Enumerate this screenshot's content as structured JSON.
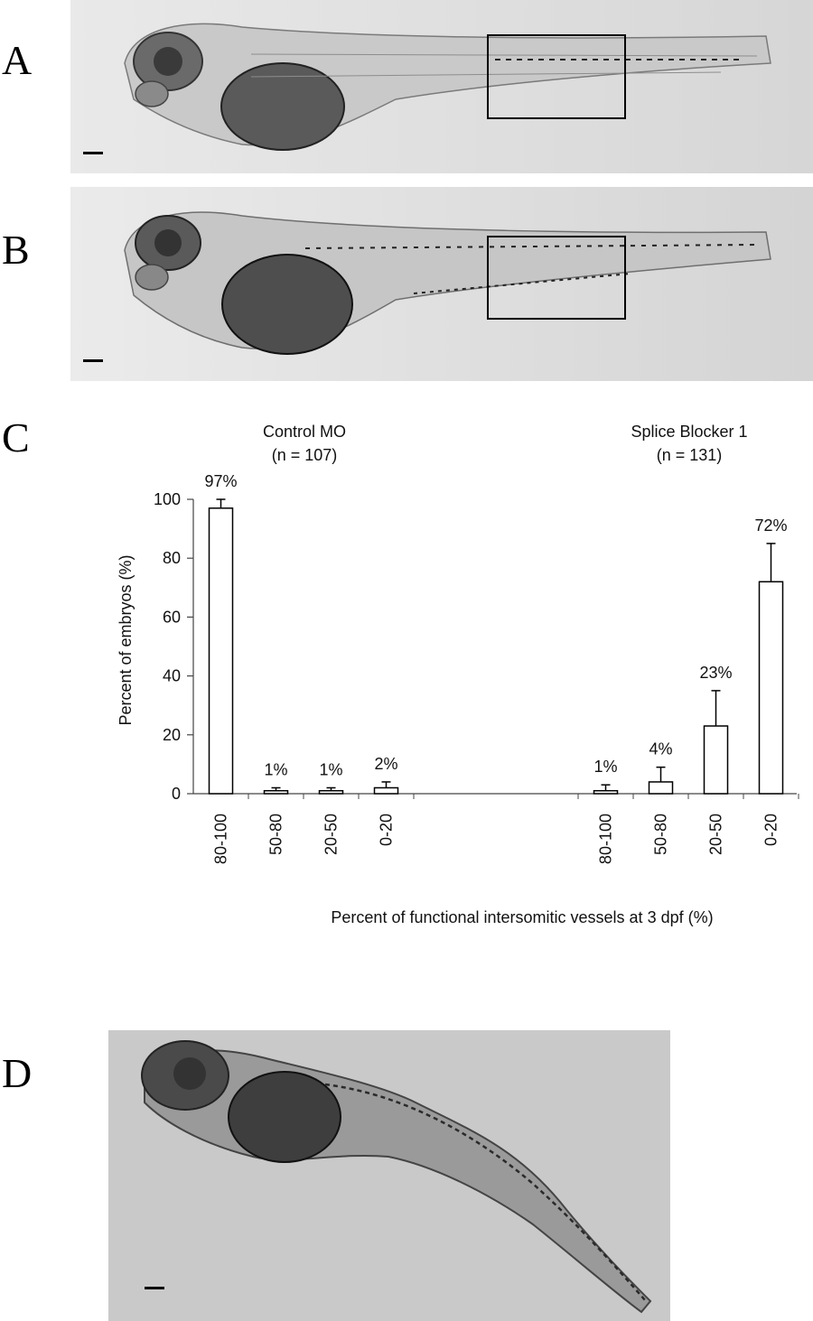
{
  "panels": {
    "a": {
      "letter": "A"
    },
    "b": {
      "letter": "B"
    },
    "c": {
      "letter": "C"
    },
    "d": {
      "letter": "D"
    }
  },
  "chart_data": {
    "type": "bar",
    "ylabel": "Percent of embryos (%)",
    "xlabel": "Percent of functional intersomitic vessels at 3 dpf (%)",
    "ylim": [
      0,
      100
    ],
    "yticks": [
      0,
      20,
      40,
      60,
      80,
      100
    ],
    "grid": false,
    "groups": [
      {
        "title": "Control MO",
        "n_label": "(n = 107)",
        "categories": [
          "80-100",
          "50-80",
          "20-50",
          "0-20"
        ],
        "values": [
          97,
          1,
          1,
          2
        ],
        "errors": [
          3,
          1,
          1,
          2
        ],
        "labels": [
          "97%",
          "1%",
          "1%",
          "2%"
        ]
      },
      {
        "title": "Splice Blocker 1",
        "n_label": "(n = 131)",
        "categories": [
          "80-100",
          "50-80",
          "20-50",
          "0-20"
        ],
        "values": [
          1,
          4,
          23,
          72
        ],
        "errors": [
          2,
          5,
          12,
          13
        ],
        "labels": [
          "1%",
          "4%",
          "23%",
          "72%"
        ]
      }
    ]
  }
}
